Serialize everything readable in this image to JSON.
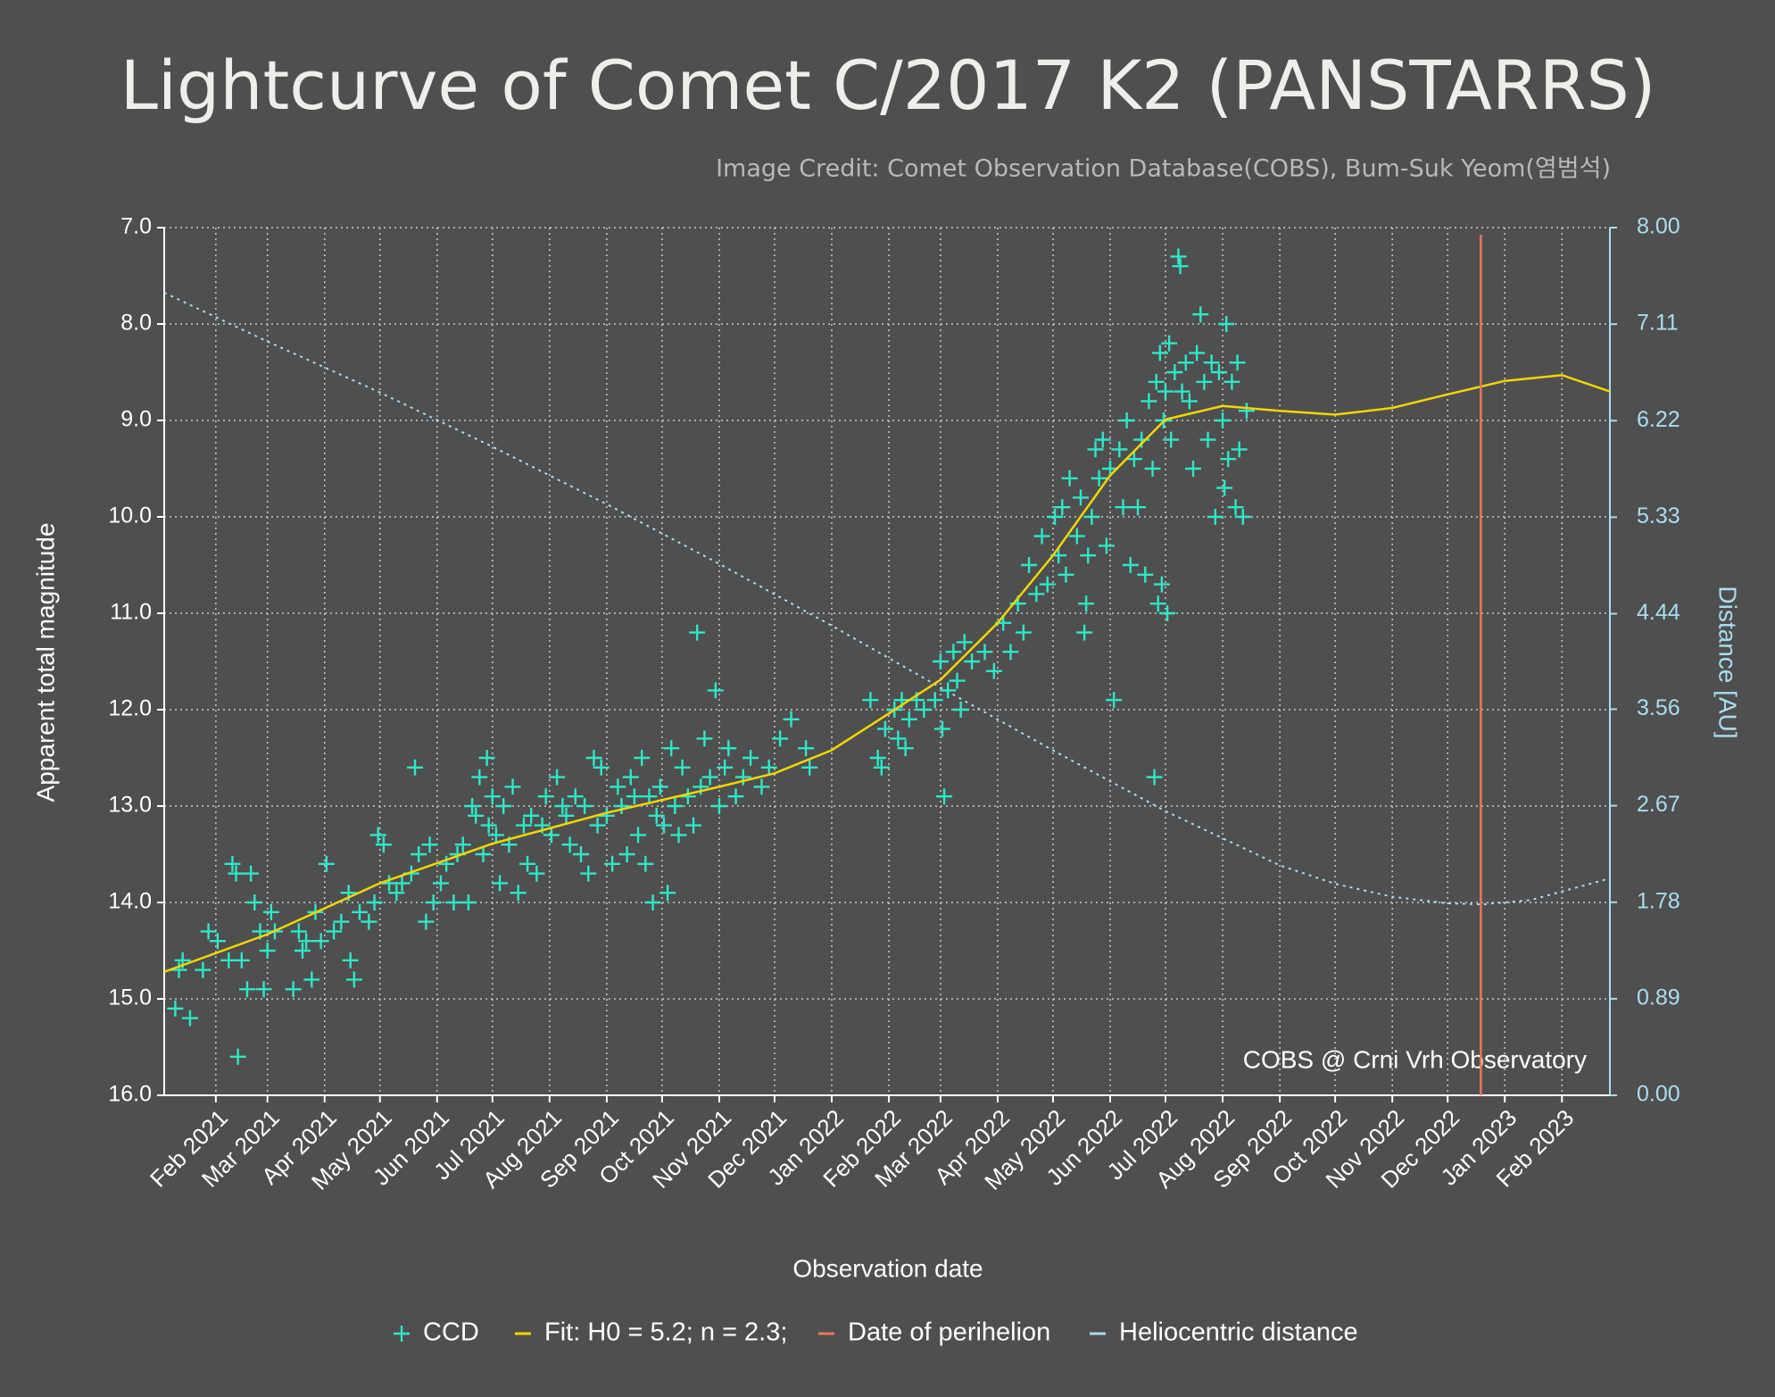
{
  "chart_data": {
    "type": "scatter",
    "title": "Lightcurve of Comet C/2017 K2 (PANSTARRS)",
    "subtitle": "Image Credit: Comet Observation Database(COBS), Bum-Suk Yeom(염범석)",
    "xlabel": "Observation date",
    "ylabel": "Apparent total magnitude",
    "y2label": "Distance [AU]",
    "annotation": "COBS @ Crni Vrh Observatory",
    "xlim": [
      "2021-01-04",
      "2023-02-27"
    ],
    "xticks": [
      {
        "value": "2021-02",
        "label": "Feb 2021"
      },
      {
        "value": "2021-03",
        "label": "Mar 2021"
      },
      {
        "value": "2021-04",
        "label": "Apr 2021"
      },
      {
        "value": "2021-05",
        "label": "May 2021"
      },
      {
        "value": "2021-06",
        "label": "Jun 2021"
      },
      {
        "value": "2021-07",
        "label": "Jul 2021"
      },
      {
        "value": "2021-08",
        "label": "Aug 2021"
      },
      {
        "value": "2021-09",
        "label": "Sep 2021"
      },
      {
        "value": "2021-10",
        "label": "Oct 2021"
      },
      {
        "value": "2021-11",
        "label": "Nov 2021"
      },
      {
        "value": "2021-12",
        "label": "Dec 2021"
      },
      {
        "value": "2022-01",
        "label": "Jan 2022"
      },
      {
        "value": "2022-02",
        "label": "Feb 2022"
      },
      {
        "value": "2022-03",
        "label": "Mar 2022"
      },
      {
        "value": "2022-04",
        "label": "Apr 2022"
      },
      {
        "value": "2022-05",
        "label": "May 2022"
      },
      {
        "value": "2022-06",
        "label": "Jun 2022"
      },
      {
        "value": "2022-07",
        "label": "Jul 2022"
      },
      {
        "value": "2022-08",
        "label": "Aug 2022"
      },
      {
        "value": "2022-09",
        "label": "Sep 2022"
      },
      {
        "value": "2022-10",
        "label": "Oct 2022"
      },
      {
        "value": "2022-11",
        "label": "Nov 2022"
      },
      {
        "value": "2022-12",
        "label": "Dec 2022"
      },
      {
        "value": "2023-01",
        "label": "Jan 2023"
      },
      {
        "value": "2023-02",
        "label": "Feb 2023"
      }
    ],
    "ylim": [
      16,
      7
    ],
    "yticks": [
      {
        "value": 7,
        "label": "7.0"
      },
      {
        "value": 8,
        "label": "8.0"
      },
      {
        "value": 9,
        "label": "9.0"
      },
      {
        "value": 10,
        "label": "10.0"
      },
      {
        "value": 11,
        "label": "11.0"
      },
      {
        "value": 12,
        "label": "12.0"
      },
      {
        "value": 13,
        "label": "13.0"
      },
      {
        "value": 14,
        "label": "14.0"
      },
      {
        "value": 15,
        "label": "15.0"
      },
      {
        "value": 16,
        "label": "16.0"
      }
    ],
    "y2lim": [
      0,
      8
    ],
    "y2ticks": [
      {
        "value": 0,
        "label": "0.00"
      },
      0.89,
      1.78,
      2.67,
      3.56,
      4.44,
      5.33,
      6.22,
      7.11,
      {
        "value": 8,
        "label": "8.00"
      }
    ],
    "grid": true,
    "legend": "bottom",
    "series": [
      {
        "name": "CCD",
        "type": "scatter",
        "color": "#2ee8c8",
        "x": [
          "2021-01-10",
          "2021-01-12",
          "2021-01-14",
          "2021-01-18",
          "2021-01-25",
          "2021-01-28",
          "2021-02-02",
          "2021-02-08",
          "2021-02-10",
          "2021-02-12",
          "2021-02-13",
          "2021-02-15",
          "2021-02-18",
          "2021-02-20",
          "2021-02-22",
          "2021-02-25",
          "2021-02-27",
          "2021-03-01",
          "2021-03-03",
          "2021-03-05",
          "2021-03-15",
          "2021-03-18",
          "2021-03-20",
          "2021-03-22",
          "2021-03-25",
          "2021-03-27",
          "2021-03-30",
          "2021-04-02",
          "2021-04-06",
          "2021-04-10",
          "2021-04-14",
          "2021-04-15",
          "2021-04-17",
          "2021-04-20",
          "2021-04-25",
          "2021-04-28",
          "2021-04-30",
          "2021-05-03",
          "2021-05-06",
          "2021-05-10",
          "2021-05-13",
          "2021-05-18",
          "2021-05-20",
          "2021-05-22",
          "2021-05-26",
          "2021-05-28",
          "2021-05-30",
          "2021-06-03",
          "2021-06-06",
          "2021-06-10",
          "2021-06-12",
          "2021-06-15",
          "2021-06-18",
          "2021-06-20",
          "2021-06-22",
          "2021-06-24",
          "2021-06-26",
          "2021-06-28",
          "2021-06-29",
          "2021-07-01",
          "2021-07-03",
          "2021-07-05",
          "2021-07-07",
          "2021-07-10",
          "2021-07-12",
          "2021-07-15",
          "2021-07-18",
          "2021-07-20",
          "2021-07-22",
          "2021-07-25",
          "2021-07-28",
          "2021-07-30",
          "2021-08-02",
          "2021-08-05",
          "2021-08-08",
          "2021-08-10",
          "2021-08-12",
          "2021-08-15",
          "2021-08-18",
          "2021-08-20",
          "2021-08-22",
          "2021-08-25",
          "2021-08-27",
          "2021-08-29",
          "2021-09-01",
          "2021-09-04",
          "2021-09-07",
          "2021-09-09",
          "2021-09-12",
          "2021-09-14",
          "2021-09-16",
          "2021-09-18",
          "2021-09-20",
          "2021-09-22",
          "2021-09-24",
          "2021-09-26",
          "2021-09-28",
          "2021-09-30",
          "2021-10-02",
          "2021-10-04",
          "2021-10-06",
          "2021-10-08",
          "2021-10-10",
          "2021-10-12",
          "2021-10-15",
          "2021-10-18",
          "2021-10-20",
          "2021-10-22",
          "2021-10-24",
          "2021-10-27",
          "2021-10-30",
          "2021-11-01",
          "2021-11-04",
          "2021-11-06",
          "2021-11-10",
          "2021-11-14",
          "2021-11-18",
          "2021-11-24",
          "2021-11-28",
          "2021-12-04",
          "2021-12-10",
          "2021-12-18",
          "2021-12-20",
          "2022-01-22",
          "2022-01-26",
          "2022-01-28",
          "2022-01-30",
          "2022-02-04",
          "2022-02-06",
          "2022-02-08",
          "2022-02-10",
          "2022-02-12",
          "2022-02-16",
          "2022-02-20",
          "2022-02-26",
          "2022-03-01",
          "2022-03-02",
          "2022-03-03",
          "2022-03-05",
          "2022-03-08",
          "2022-03-10",
          "2022-03-12",
          "2022-03-14",
          "2022-03-18",
          "2022-03-25",
          "2022-03-30",
          "2022-04-04",
          "2022-04-08",
          "2022-04-12",
          "2022-04-15",
          "2022-04-18",
          "2022-04-22",
          "2022-04-25",
          "2022-04-28",
          "2022-05-02",
          "2022-05-04",
          "2022-05-06",
          "2022-05-08",
          "2022-05-10",
          "2022-05-14",
          "2022-05-16",
          "2022-05-18",
          "2022-05-19",
          "2022-05-20",
          "2022-05-22",
          "2022-05-24",
          "2022-05-26",
          "2022-05-28",
          "2022-05-30",
          "2022-06-01",
          "2022-06-03",
          "2022-06-06",
          "2022-06-08",
          "2022-06-10",
          "2022-06-12",
          "2022-06-14",
          "2022-06-16",
          "2022-06-18",
          "2022-06-20",
          "2022-06-22",
          "2022-06-24",
          "2022-06-25",
          "2022-06-26",
          "2022-06-27",
          "2022-06-28",
          "2022-06-29",
          "2022-06-30",
          "2022-07-01",
          "2022-07-02",
          "2022-07-03",
          "2022-07-04",
          "2022-07-06",
          "2022-07-08",
          "2022-07-09",
          "2022-07-10",
          "2022-07-12",
          "2022-07-14",
          "2022-07-16",
          "2022-07-18",
          "2022-07-20",
          "2022-07-22",
          "2022-07-24",
          "2022-07-26",
          "2022-07-28",
          "2022-07-30",
          "2022-08-01",
          "2022-08-02",
          "2022-08-03",
          "2022-08-04",
          "2022-08-06",
          "2022-08-08",
          "2022-08-09",
          "2022-08-10",
          "2022-08-12",
          "2022-08-14"
        ],
        "values": [
          15.1,
          14.7,
          14.6,
          15.2,
          14.7,
          14.3,
          14.4,
          14.6,
          13.6,
          13.7,
          15.6,
          14.6,
          14.9,
          13.7,
          14.0,
          14.3,
          14.9,
          14.5,
          14.1,
          14.3,
          14.9,
          14.3,
          14.5,
          14.4,
          14.8,
          14.1,
          14.4,
          13.6,
          14.3,
          14.2,
          13.9,
          14.6,
          14.8,
          14.1,
          14.2,
          14.0,
          13.3,
          13.4,
          13.8,
          13.9,
          13.8,
          13.7,
          12.6,
          13.5,
          14.2,
          13.4,
          14.0,
          13.8,
          13.6,
          14.0,
          13.5,
          13.4,
          14.0,
          13.0,
          13.1,
          12.7,
          13.5,
          12.5,
          13.2,
          12.9,
          13.3,
          13.8,
          13.0,
          13.4,
          12.8,
          13.9,
          13.2,
          13.6,
          13.1,
          13.7,
          13.2,
          12.9,
          13.3,
          12.7,
          13.0,
          13.1,
          13.4,
          12.9,
          13.5,
          13.0,
          13.7,
          12.5,
          13.2,
          12.6,
          13.1,
          13.6,
          12.8,
          13.0,
          13.5,
          12.7,
          12.9,
          13.3,
          12.5,
          13.6,
          12.9,
          14.0,
          13.1,
          12.8,
          13.2,
          13.9,
          12.4,
          13.0,
          13.3,
          12.6,
          12.9,
          13.2,
          11.2,
          12.8,
          12.3,
          12.7,
          11.8,
          13.0,
          12.6,
          12.4,
          12.9,
          12.7,
          12.5,
          12.8,
          12.6,
          12.3,
          12.1,
          12.4,
          12.6,
          11.9,
          12.5,
          12.6,
          12.2,
          12.0,
          12.3,
          11.9,
          12.4,
          12.1,
          11.9,
          12.0,
          11.9,
          11.5,
          12.2,
          12.9,
          11.8,
          11.4,
          11.7,
          12.0,
          11.3,
          11.5,
          11.4,
          11.6,
          11.1,
          11.4,
          10.9,
          11.2,
          10.5,
          10.8,
          10.2,
          10.7,
          10.0,
          10.4,
          9.9,
          10.6,
          9.6,
          10.2,
          9.8,
          11.2,
          10.9,
          10.4,
          10.0,
          9.3,
          9.6,
          9.2,
          10.3,
          9.5,
          11.9,
          9.3,
          9.9,
          9.0,
          10.5,
          9.4,
          9.9,
          9.2,
          10.6,
          8.8,
          9.5,
          12.7,
          8.6,
          10.9,
          8.3,
          10.7,
          9.0,
          8.7,
          11.0,
          8.2,
          9.2,
          8.5,
          7.3,
          7.4,
          8.7,
          8.4,
          8.8,
          9.5,
          8.3,
          7.9,
          8.6,
          9.2,
          8.4,
          10.0,
          8.5,
          9.0,
          9.7,
          8.0,
          9.4,
          8.6,
          9.9,
          8.4,
          9.3,
          10.0,
          8.9
        ]
      },
      {
        "name": "Fit: H0 = 5.2; n = 2.3;",
        "type": "line",
        "color": "#f2d600",
        "x": [
          "2021-01-04",
          "2021-03-01",
          "2021-05-01",
          "2021-07-01",
          "2021-09-01",
          "2021-11-01",
          "2021-12-01",
          "2022-01-01",
          "2022-02-01",
          "2022-03-01",
          "2022-04-01",
          "2022-05-01",
          "2022-06-01",
          "2022-07-01",
          "2022-08-01",
          "2022-09-01",
          "2022-10-01",
          "2022-11-01",
          "2022-12-01",
          "2023-01-01",
          "2023-02-01",
          "2023-02-27"
        ],
        "values": [
          14.72,
          14.33,
          13.8,
          13.39,
          13.07,
          12.8,
          12.66,
          12.42,
          12.04,
          11.69,
          11.1,
          10.4,
          9.57,
          8.99,
          8.85,
          8.9,
          8.94,
          8.87,
          8.73,
          8.59,
          8.53,
          8.7
        ]
      },
      {
        "name": "Heliocentric distance",
        "type": "line",
        "axis": "y2",
        "color": "#a8def0",
        "dash": "3 5",
        "x": [
          "2021-01-04",
          "2021-03-01",
          "2021-05-01",
          "2021-07-01",
          "2021-09-01",
          "2021-11-01",
          "2022-01-01",
          "2022-03-01",
          "2022-05-01",
          "2022-07-01",
          "2022-09-01",
          "2022-10-01",
          "2022-11-01",
          "2022-12-01",
          "2022-12-20",
          "2023-01-15",
          "2023-02-27"
        ],
        "values": [
          7.4,
          6.95,
          6.48,
          5.98,
          5.45,
          4.9,
          4.33,
          3.76,
          3.18,
          2.62,
          2.12,
          1.95,
          1.83,
          1.77,
          1.76,
          1.8,
          2.0
        ]
      }
    ],
    "vlines": [
      {
        "name": "Date of perihelion",
        "color": "#e8785c",
        "x": "2022-12-19"
      }
    ]
  }
}
